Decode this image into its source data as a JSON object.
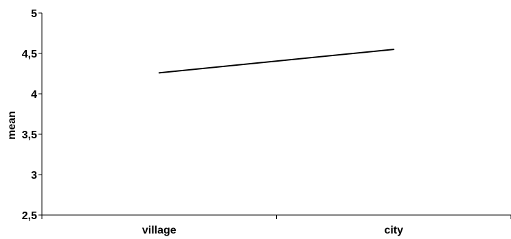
{
  "chart_data": {
    "type": "line",
    "title": "",
    "xlabel": "",
    "ylabel": "mean",
    "categories": [
      "village",
      "city"
    ],
    "series": [
      {
        "values": [
          4.26,
          4.55
        ],
        "color": "#000000"
      }
    ],
    "ylim": [
      2.5,
      5
    ],
    "yticks": [
      "2,5",
      "3",
      "3,5",
      "4",
      "4,5",
      "5"
    ],
    "ytick_values": [
      2.5,
      3,
      3.5,
      4,
      4.5,
      5
    ],
    "grid": false,
    "legend": "none"
  }
}
